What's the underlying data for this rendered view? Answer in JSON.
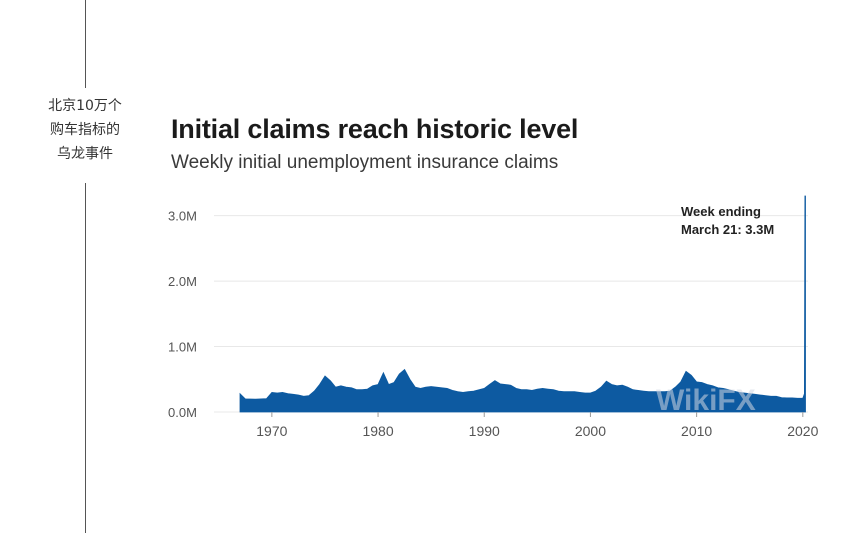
{
  "side_caption": {
    "lines": [
      "北京10万个",
      "购车指标的",
      "乌龙事件"
    ]
  },
  "watermark": "WikiFX",
  "colors": {
    "area": "#0d5aa1",
    "grid": "#e8e8e8",
    "tick": "#555555"
  },
  "chart_data": {
    "type": "area",
    "title": "Initial claims reach historic level",
    "subtitle": "Weekly initial unemployment insurance claims",
    "xlabel": "",
    "ylabel": "",
    "xlim": [
      1967,
      2020.3
    ],
    "ylim": [
      0,
      3300000
    ],
    "x_ticks": [
      {
        "value": 1970,
        "label": "1970"
      },
      {
        "value": 1980,
        "label": "1980"
      },
      {
        "value": 1990,
        "label": "1990"
      },
      {
        "value": 2000,
        "label": "2000"
      },
      {
        "value": 2010,
        "label": "2010"
      },
      {
        "value": 2020,
        "label": "2020"
      }
    ],
    "y_ticks": [
      {
        "value": 0,
        "label": "0.0M"
      },
      {
        "value": 1000000,
        "label": "1.0M"
      },
      {
        "value": 2000000,
        "label": "2.0M"
      },
      {
        "value": 3000000,
        "label": "3.0M"
      }
    ],
    "grid": true,
    "annotation": {
      "lines": [
        "Week ending",
        "March 21: 3.3M"
      ],
      "x": 2020.2,
      "y": 3300000
    },
    "series": [
      {
        "values": [
          [
            1967.0,
            280000
          ],
          [
            1967.5,
            200000
          ],
          [
            1968.5,
            195000
          ],
          [
            1969.5,
            205000
          ],
          [
            1970.0,
            300000
          ],
          [
            1970.5,
            290000
          ],
          [
            1971.0,
            300000
          ],
          [
            1971.5,
            280000
          ],
          [
            1972.0,
            270000
          ],
          [
            1972.5,
            260000
          ],
          [
            1973.0,
            240000
          ],
          [
            1973.5,
            250000
          ],
          [
            1974.0,
            320000
          ],
          [
            1974.5,
            420000
          ],
          [
            1975.0,
            550000
          ],
          [
            1975.5,
            480000
          ],
          [
            1976.0,
            380000
          ],
          [
            1976.5,
            400000
          ],
          [
            1977.0,
            380000
          ],
          [
            1977.5,
            370000
          ],
          [
            1978.0,
            340000
          ],
          [
            1978.5,
            340000
          ],
          [
            1979.0,
            350000
          ],
          [
            1979.5,
            400000
          ],
          [
            1980.0,
            420000
          ],
          [
            1980.5,
            600000
          ],
          [
            1981.0,
            420000
          ],
          [
            1981.5,
            450000
          ],
          [
            1982.0,
            580000
          ],
          [
            1982.5,
            650000
          ],
          [
            1983.0,
            500000
          ],
          [
            1983.5,
            380000
          ],
          [
            1984.0,
            360000
          ],
          [
            1984.5,
            380000
          ],
          [
            1985.0,
            390000
          ],
          [
            1985.5,
            380000
          ],
          [
            1986.0,
            370000
          ],
          [
            1986.5,
            360000
          ],
          [
            1987.0,
            330000
          ],
          [
            1987.5,
            310000
          ],
          [
            1988.0,
            300000
          ],
          [
            1988.5,
            310000
          ],
          [
            1989.0,
            320000
          ],
          [
            1989.5,
            340000
          ],
          [
            1990.0,
            360000
          ],
          [
            1990.5,
            420000
          ],
          [
            1991.0,
            480000
          ],
          [
            1991.5,
            430000
          ],
          [
            1992.0,
            420000
          ],
          [
            1992.5,
            410000
          ],
          [
            1993.0,
            360000
          ],
          [
            1993.5,
            340000
          ],
          [
            1994.0,
            340000
          ],
          [
            1994.5,
            330000
          ],
          [
            1995.0,
            350000
          ],
          [
            1995.5,
            360000
          ],
          [
            1996.0,
            350000
          ],
          [
            1996.5,
            340000
          ],
          [
            1997.0,
            320000
          ],
          [
            1997.5,
            310000
          ],
          [
            1998.0,
            310000
          ],
          [
            1998.5,
            310000
          ],
          [
            1999.0,
            300000
          ],
          [
            1999.5,
            290000
          ],
          [
            2000.0,
            290000
          ],
          [
            2000.5,
            320000
          ],
          [
            2001.0,
            380000
          ],
          [
            2001.5,
            470000
          ],
          [
            2002.0,
            420000
          ],
          [
            2002.5,
            400000
          ],
          [
            2003.0,
            410000
          ],
          [
            2003.5,
            380000
          ],
          [
            2004.0,
            340000
          ],
          [
            2004.5,
            330000
          ],
          [
            2005.0,
            320000
          ],
          [
            2005.5,
            310000
          ],
          [
            2006.0,
            310000
          ],
          [
            2006.5,
            310000
          ],
          [
            2007.0,
            310000
          ],
          [
            2007.5,
            320000
          ],
          [
            2008.0,
            380000
          ],
          [
            2008.5,
            460000
          ],
          [
            2009.0,
            620000
          ],
          [
            2009.5,
            560000
          ],
          [
            2010.0,
            460000
          ],
          [
            2010.5,
            450000
          ],
          [
            2011.0,
            420000
          ],
          [
            2011.5,
            400000
          ],
          [
            2012.0,
            370000
          ],
          [
            2012.5,
            360000
          ],
          [
            2013.0,
            340000
          ],
          [
            2013.5,
            320000
          ],
          [
            2014.0,
            300000
          ],
          [
            2014.5,
            290000
          ],
          [
            2015.0,
            280000
          ],
          [
            2015.5,
            270000
          ],
          [
            2016.0,
            260000
          ],
          [
            2016.5,
            250000
          ],
          [
            2017.0,
            240000
          ],
          [
            2017.5,
            240000
          ],
          [
            2018.0,
            220000
          ],
          [
            2018.5,
            215000
          ],
          [
            2019.0,
            215000
          ],
          [
            2019.5,
            210000
          ],
          [
            2020.0,
            210000
          ],
          [
            2020.15,
            280000
          ],
          [
            2020.2,
            3300000
          ],
          [
            2020.25,
            3300000
          ]
        ]
      }
    ]
  }
}
